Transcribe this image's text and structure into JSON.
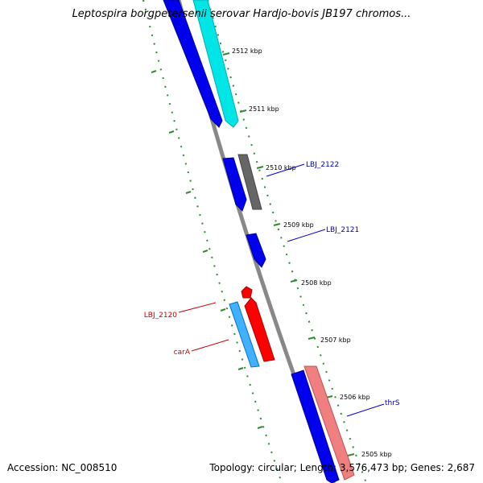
{
  "title": "Leptospira borgpetersenii serovar Hardjo-bovis JB197 chromos...",
  "footer": {
    "accession": "Accession: NC_008510",
    "summary": "Topology: circular; Length: 3,576,473 bp; Genes: 2,687"
  },
  "ticks": [
    {
      "label": "2512 kbp"
    },
    {
      "label": "2511 kbp"
    },
    {
      "label": "2510 kbp"
    },
    {
      "label": "2509 kbp"
    },
    {
      "label": "2508 kbp"
    },
    {
      "label": "2507 kbp"
    },
    {
      "label": "2506 kbp"
    },
    {
      "label": "2505 kbp"
    }
  ],
  "gene_labels": [
    {
      "text": "LBJ_2122",
      "color": "#0000aa"
    },
    {
      "text": "LBJ_2121",
      "color": "#0000aa"
    },
    {
      "text": "LBJ_2120",
      "color": "#cc0000"
    },
    {
      "text": "carA",
      "color": "#cc0000"
    },
    {
      "text": "thrS",
      "color": "#0000aa"
    }
  ],
  "colors": {
    "backbone": "#888888",
    "forward_gene": "#0000ee",
    "reverse_gene": "#ff0000",
    "cyan_gene": "#00e5e5",
    "light_blue_gene": "#40b0ff",
    "pink_gene": "#f08080",
    "gray_gene": "#666666",
    "tick_dots": "#2e8b2e"
  }
}
